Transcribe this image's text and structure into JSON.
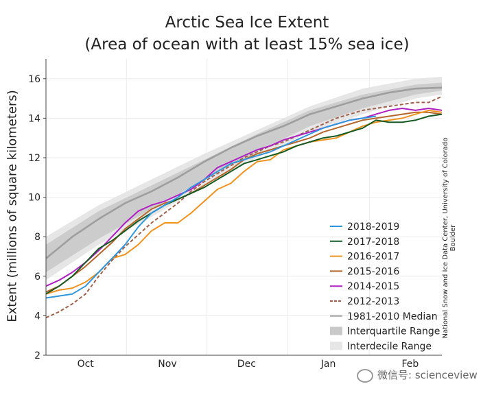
{
  "chart_data": {
    "type": "line",
    "title": "Arctic Sea Ice Extent",
    "subtitle": "(Area of ocean with at least 15% sea ice)",
    "ylabel": "Extent (millions of square kilometers)",
    "ylim": [
      2,
      17
    ],
    "yticks": [
      2,
      4,
      6,
      8,
      10,
      12,
      14,
      16
    ],
    "xlim": [
      0,
      150
    ],
    "months": [
      {
        "label": "Oct",
        "pos": 15
      },
      {
        "label": "Nov",
        "pos": 46
      },
      {
        "label": "Dec",
        "pos": 76
      },
      {
        "label": "Jan",
        "pos": 107
      },
      {
        "label": "Feb",
        "pos": 138
      }
    ],
    "interdecile_range": {
      "x": [
        0,
        20,
        40,
        60,
        80,
        100,
        120,
        140,
        150
      ],
      "low": [
        5.8,
        7.6,
        9.0,
        10.6,
        12.0,
        13.3,
        14.2,
        15.0,
        15.2
      ],
      "high": [
        8.0,
        9.6,
        10.9,
        12.2,
        13.4,
        14.6,
        15.5,
        16.0,
        16.1
      ]
    },
    "interquartile_range": {
      "x": [
        0,
        20,
        40,
        60,
        80,
        100,
        120,
        140,
        150
      ],
      "low": [
        6.2,
        7.9,
        9.4,
        10.9,
        12.3,
        13.6,
        14.5,
        15.2,
        15.4
      ],
      "high": [
        7.6,
        9.3,
        10.6,
        11.9,
        13.2,
        14.4,
        15.2,
        15.7,
        15.8
      ]
    },
    "series": [
      {
        "name": "1981-2010 Median",
        "color": "#9e9e9e",
        "dash": "",
        "width": 2.6,
        "x": [
          0,
          10,
          20,
          30,
          40,
          50,
          60,
          70,
          80,
          90,
          100,
          110,
          120,
          130,
          140,
          150
        ],
        "y": [
          6.9,
          8.0,
          8.9,
          9.7,
          10.3,
          11.0,
          11.8,
          12.5,
          13.1,
          13.6,
          14.2,
          14.6,
          15.0,
          15.3,
          15.5,
          15.55
        ]
      },
      {
        "name": "2012-2013",
        "color": "#a0604a",
        "dash": "5,3",
        "width": 2,
        "x": [
          0,
          5,
          10,
          15,
          20,
          25,
          30,
          35,
          40,
          45,
          50,
          55,
          60,
          65,
          70,
          75,
          80,
          85,
          90,
          95,
          100,
          105,
          110,
          115,
          120,
          125,
          130,
          135,
          140,
          145,
          150
        ],
        "y": [
          3.9,
          4.2,
          4.6,
          5.1,
          6.0,
          6.8,
          7.5,
          8.1,
          8.7,
          9.2,
          9.7,
          10.3,
          10.8,
          11.2,
          11.6,
          12.0,
          12.3,
          12.6,
          12.8,
          13.1,
          13.4,
          13.7,
          14.0,
          14.2,
          14.4,
          14.5,
          14.6,
          14.7,
          14.8,
          14.8,
          15.1
        ]
      },
      {
        "name": "2014-2015",
        "color": "#b01fc4",
        "dash": "",
        "width": 2,
        "x": [
          0,
          5,
          10,
          15,
          20,
          25,
          30,
          35,
          40,
          45,
          50,
          55,
          60,
          65,
          70,
          75,
          80,
          85,
          90,
          95,
          100,
          105,
          110,
          115,
          120,
          125,
          130,
          135,
          140,
          145,
          150
        ],
        "y": [
          5.5,
          5.8,
          6.2,
          6.7,
          7.3,
          8.0,
          8.7,
          9.3,
          9.6,
          9.8,
          10.1,
          10.4,
          10.9,
          11.5,
          11.8,
          12.1,
          12.4,
          12.6,
          12.9,
          13.1,
          13.3,
          13.5,
          13.7,
          13.9,
          14.0,
          14.2,
          14.4,
          14.5,
          14.4,
          14.5,
          14.4
        ]
      },
      {
        "name": "2015-2016",
        "color": "#b5662a",
        "dash": "",
        "width": 2,
        "x": [
          0,
          5,
          10,
          15,
          20,
          25,
          30,
          35,
          40,
          45,
          50,
          55,
          60,
          65,
          70,
          75,
          80,
          85,
          90,
          95,
          100,
          105,
          110,
          115,
          120,
          125,
          130,
          135,
          140,
          145,
          150
        ],
        "y": [
          5.2,
          5.5,
          6.0,
          6.5,
          7.1,
          7.7,
          8.4,
          8.9,
          9.4,
          9.7,
          9.9,
          10.2,
          10.6,
          11.0,
          11.4,
          11.9,
          12.2,
          12.4,
          12.6,
          12.8,
          13.0,
          13.3,
          13.5,
          13.7,
          13.9,
          14.0,
          14.1,
          14.2,
          14.3,
          14.3,
          14.2
        ]
      },
      {
        "name": "2016-2017",
        "color": "#f0921e",
        "dash": "",
        "width": 2,
        "x": [
          0,
          5,
          10,
          15,
          20,
          25,
          30,
          35,
          40,
          45,
          50,
          55,
          60,
          65,
          70,
          75,
          80,
          85,
          90,
          95,
          100,
          105,
          110,
          115,
          120,
          125,
          130,
          135,
          140,
          145,
          150
        ],
        "y": [
          5.1,
          5.3,
          5.4,
          5.7,
          6.2,
          6.9,
          7.1,
          7.6,
          8.3,
          8.7,
          8.7,
          9.2,
          9.8,
          10.4,
          10.7,
          11.3,
          11.8,
          11.9,
          12.4,
          12.6,
          12.8,
          12.9,
          13.0,
          13.3,
          13.6,
          13.8,
          13.9,
          14.0,
          14.2,
          14.4,
          14.3
        ]
      },
      {
        "name": "2017-2018",
        "color": "#145a22",
        "dash": "",
        "width": 2,
        "x": [
          0,
          5,
          10,
          15,
          20,
          25,
          30,
          35,
          40,
          45,
          50,
          55,
          60,
          65,
          70,
          75,
          80,
          85,
          90,
          95,
          100,
          105,
          110,
          115,
          120,
          125,
          130,
          135,
          140,
          145,
          150
        ],
        "y": [
          5.1,
          5.5,
          6.0,
          6.7,
          7.4,
          7.8,
          8.3,
          8.8,
          9.2,
          9.6,
          9.9,
          10.2,
          10.5,
          10.9,
          11.3,
          11.7,
          11.9,
          12.1,
          12.3,
          12.6,
          12.8,
          13.0,
          13.1,
          13.3,
          13.5,
          13.9,
          13.8,
          13.8,
          13.9,
          14.1,
          14.2
        ]
      },
      {
        "name": "2018-2019",
        "color": "#2e96dc",
        "dash": "",
        "width": 2,
        "x": [
          0,
          5,
          10,
          15,
          20,
          25,
          30,
          35,
          40,
          45,
          50,
          55,
          60,
          65,
          70,
          75,
          80,
          85,
          90,
          95,
          100,
          105,
          110,
          115,
          120,
          125
        ],
        "y": [
          4.9,
          5.0,
          5.1,
          5.5,
          6.2,
          6.9,
          7.6,
          8.5,
          9.2,
          9.6,
          10.0,
          10.5,
          10.9,
          11.3,
          11.7,
          11.9,
          12.1,
          12.3,
          12.6,
          12.9,
          13.2,
          13.5,
          13.7,
          13.9,
          14.0,
          14.1
        ]
      }
    ],
    "legend": {
      "position": "bottom-right",
      "items": [
        {
          "label": "2018-2019",
          "color": "#2e96dc",
          "kind": "line"
        },
        {
          "label": "2017-2018",
          "color": "#145a22",
          "kind": "line"
        },
        {
          "label": "2016-2017",
          "color": "#f0921e",
          "kind": "line"
        },
        {
          "label": "2015-2016",
          "color": "#b5662a",
          "kind": "line"
        },
        {
          "label": "2014-2015",
          "color": "#b01fc4",
          "kind": "line"
        },
        {
          "label": "2012-2013",
          "color": "#a0604a",
          "kind": "dashed"
        },
        {
          "label": "1981-2010 Median",
          "color": "#9e9e9e",
          "kind": "line"
        },
        {
          "label": "Interquartile Range",
          "color": "#c9c9c9",
          "kind": "band"
        },
        {
          "label": "Interdecile Range",
          "color": "#e6e6e6",
          "kind": "band"
        }
      ]
    }
  },
  "credit": "National Snow and Ice Data Center, University of Colorado Boulder",
  "watermark": "微信号: scienceview"
}
